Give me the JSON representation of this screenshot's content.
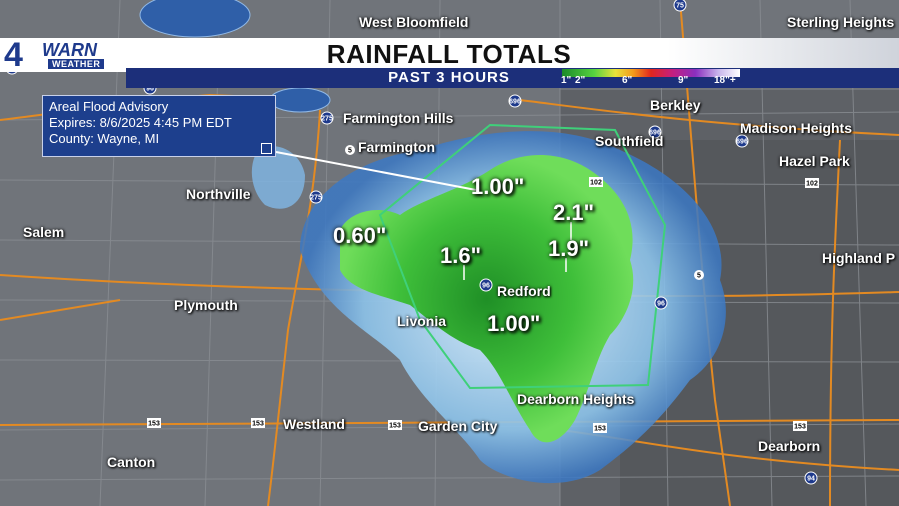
{
  "header": {
    "logo_number": "4",
    "logo_brand": "WARN",
    "logo_sub": "WEATHER",
    "title": "RAINFALL TOTALS",
    "subtitle": "PAST 3 HOURS"
  },
  "legend": {
    "ticks": [
      "1\"",
      "2\"",
      "6\"",
      "9\"",
      "18\"+"
    ]
  },
  "advisory": {
    "line1": "Areal Flood Advisory",
    "line2": "Expires: 8/6/2025 4:45 PM EDT",
    "line3": "County: Wayne, MI"
  },
  "cities": [
    {
      "id": "west-bloomfield",
      "label": "West Bloomfield"
    },
    {
      "id": "sterling-heights",
      "label": "Sterling Heights"
    },
    {
      "id": "farmington-hills",
      "label": "Farmington Hills"
    },
    {
      "id": "berkley",
      "label": "Berkley"
    },
    {
      "id": "farmington",
      "label": "Farmington"
    },
    {
      "id": "southfield",
      "label": "Southfield"
    },
    {
      "id": "madison-heights",
      "label": "Madison Heights"
    },
    {
      "id": "hazel-park",
      "label": "Hazel Park"
    },
    {
      "id": "northville",
      "label": "Northville"
    },
    {
      "id": "salem",
      "label": "Salem"
    },
    {
      "id": "highland-park",
      "label": "Highland P"
    },
    {
      "id": "plymouth",
      "label": "Plymouth"
    },
    {
      "id": "redford",
      "label": "Redford"
    },
    {
      "id": "livonia",
      "label": "Livonia"
    },
    {
      "id": "dearborn-heights",
      "label": "Dearborn Heights"
    },
    {
      "id": "westland",
      "label": "Westland"
    },
    {
      "id": "garden-city",
      "label": "Garden City"
    },
    {
      "id": "dearborn",
      "label": "Dearborn"
    },
    {
      "id": "canton",
      "label": "Canton"
    }
  ],
  "totals": [
    {
      "id": "total-farmington-east",
      "value": "1.00\""
    },
    {
      "id": "total-southfield-south",
      "value": "2.1\""
    },
    {
      "id": "total-west",
      "value": "0.60\""
    },
    {
      "id": "total-redford-north",
      "value": "1.6\""
    },
    {
      "id": "total-east-redford",
      "value": "1.9\""
    },
    {
      "id": "total-livonia-east",
      "value": "1.00\""
    }
  ],
  "highway_shields": [
    "96",
    "696",
    "275",
    "75",
    "102",
    "5",
    "153",
    "94",
    "696",
    "696",
    "96",
    "96",
    "96",
    "275",
    "102",
    "5",
    "153",
    "153",
    "153",
    "153"
  ],
  "colors": {
    "banner_blue": "#1c2f7a",
    "advisory_bg": "#1d3f8d",
    "rain_light": "#9fd0f0",
    "rain_green": "#3fbf3a",
    "polygon": "#3fd07a"
  }
}
